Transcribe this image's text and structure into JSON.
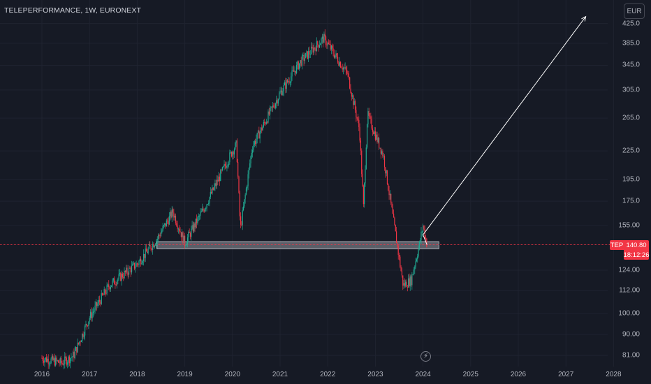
{
  "header": {
    "title": "TELEPERFORMANCE, 1W, EURONEXT",
    "currency": "EUR"
  },
  "price_badge": {
    "symbol": "TEP",
    "price": "140.80",
    "countdown": "18:12:26"
  },
  "colors": {
    "up": "#22ab94",
    "down": "#f23645",
    "background": "#161a25",
    "zone": "#9598a1",
    "arrow": "#ffffff"
  },
  "icons": {
    "event": "lightning-icon"
  },
  "chart_data": {
    "type": "candlestick",
    "title": "TELEPERFORMANCE, 1W, EURONEXT",
    "currency": "EUR",
    "y_scale": "log",
    "y_ticks": [
      "425.0",
      "385.0",
      "345.0",
      "305.0",
      "265.0",
      "225.0",
      "195.0",
      "175.0",
      "155.00",
      "124.00",
      "112.00",
      "100.00",
      "90.00",
      "81.00"
    ],
    "x_ticks": [
      "2016",
      "2017",
      "2018",
      "2019",
      "2020",
      "2021",
      "2022",
      "2023",
      "2024",
      "2025",
      "2026",
      "2027",
      "2028"
    ],
    "last_price": 140.8,
    "weekly_close_path": [
      [
        "2016-01",
        80
      ],
      [
        "2016-06",
        78
      ],
      [
        "2016-09",
        81
      ],
      [
        "2017-01",
        98
      ],
      [
        "2017-06",
        115
      ],
      [
        "2018-01",
        128
      ],
      [
        "2018-06",
        145
      ],
      [
        "2018-10",
        166
      ],
      [
        "2019-01",
        142
      ],
      [
        "2019-06",
        170
      ],
      [
        "2020-01",
        225
      ],
      [
        "2020-02",
        232
      ],
      [
        "2020-03",
        152
      ],
      [
        "2020-06",
        230
      ],
      [
        "2021-01",
        300
      ],
      [
        "2021-06",
        350
      ],
      [
        "2021-12",
        395
      ],
      [
        "2022-06",
        330
      ],
      [
        "2022-09",
        250
      ],
      [
        "2022-10",
        170
      ],
      [
        "2022-11",
        270
      ],
      [
        "2023-03",
        220
      ],
      [
        "2023-06",
        150
      ],
      [
        "2023-08",
        115
      ],
      [
        "2023-10",
        118
      ],
      [
        "2023-12",
        140
      ],
      [
        "2024-01",
        155
      ],
      [
        "2024-02",
        140.8
      ]
    ],
    "support_zone": {
      "low": 138,
      "high": 143,
      "from": "2018-06",
      "to": "2024-05"
    },
    "projection": [
      [
        "2024-02",
        140.8
      ],
      [
        "2024-01",
        148
      ],
      [
        "2027-06",
        440
      ]
    ]
  }
}
